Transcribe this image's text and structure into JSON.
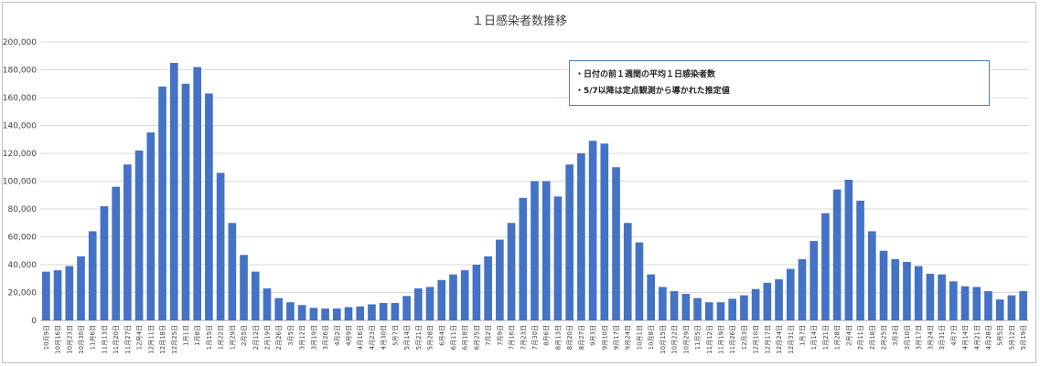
{
  "chart_data": {
    "type": "bar",
    "title": "１日感染者数推移",
    "ylim": [
      0,
      200000
    ],
    "yticks": [
      "0",
      "20,000",
      "40,000",
      "60,000",
      "80,000",
      "100,000",
      "120,000",
      "140,000",
      "160,000",
      "180,000",
      "200,000"
    ],
    "grid": true,
    "legend_position": "top-right",
    "bar_color": "#4472c4",
    "notes": [
      "・日付の前１週間の平均１日感染者数",
      "・5/7以降は定点観測から導かれた推定値"
    ],
    "categories": [
      "10月9日",
      "10月16日",
      "10月23日",
      "10月30日",
      "11月6日",
      "11月13日",
      "11月20日",
      "11月27日",
      "12月4日",
      "12月11日",
      "12月18日",
      "12月25日",
      "1月1日",
      "1月8日",
      "1月15日",
      "1月22日",
      "1月29日",
      "2月5日",
      "2月12日",
      "2月19日",
      "2月26日",
      "3月5日",
      "3月12日",
      "3月19日",
      "3月26日",
      "4月2日",
      "4月9日",
      "4月16日",
      "4月23日",
      "4月30日",
      "5月7日",
      "5月14日",
      "5月21日",
      "5月28日",
      "6月4日",
      "6月11日",
      "6月18日",
      "6月25日",
      "7月2日",
      "7月9日",
      "7月16日",
      "7月23日",
      "7月30日",
      "8月6日",
      "8月13日",
      "8月20日",
      "8月27日",
      "9月3日",
      "9月10日",
      "9月17日",
      "9月24日",
      "10月1日",
      "10月8日",
      "10月15日",
      "10月22日",
      "10月29日",
      "11月5日",
      "11月12日",
      "11月19日",
      "11月26日",
      "12月3日",
      "12月10日",
      "12月17日",
      "12月24日",
      "12月31日",
      "1月7日",
      "1月14日",
      "1月21日",
      "1月28日",
      "2月4日",
      "2月11日",
      "2月18日",
      "2月25日",
      "3月3日",
      "3月10日",
      "3月17日",
      "3月24日",
      "3月31日",
      "4月7日",
      "4月14日",
      "4月21日",
      "4月28日",
      "5月5日",
      "5月12日",
      "5月19日"
    ],
    "values": [
      35000,
      36000,
      39000,
      46000,
      64000,
      82000,
      96000,
      112000,
      122000,
      135000,
      168000,
      185000,
      170000,
      182000,
      163000,
      106000,
      70000,
      47000,
      35000,
      23000,
      16000,
      13000,
      11000,
      9000,
      8500,
      8500,
      9500,
      10000,
      11500,
      12500,
      12500,
      17500,
      23000,
      24000,
      29000,
      33000,
      36000,
      40000,
      46000,
      58000,
      70000,
      88000,
      100000,
      100000,
      89000,
      112000,
      120000,
      129000,
      127000,
      110000,
      70000,
      56000,
      33000,
      24000,
      21000,
      19000,
      16000,
      13000,
      13000,
      15500,
      18000,
      22500,
      27000,
      29500,
      37000,
      44000,
      57000,
      77000,
      94000,
      101000,
      86000,
      64000,
      50000,
      44000,
      42000,
      39000,
      33500,
      33000,
      28000,
      24500,
      24000,
      21000,
      15000,
      18000,
      21000
    ]
  }
}
